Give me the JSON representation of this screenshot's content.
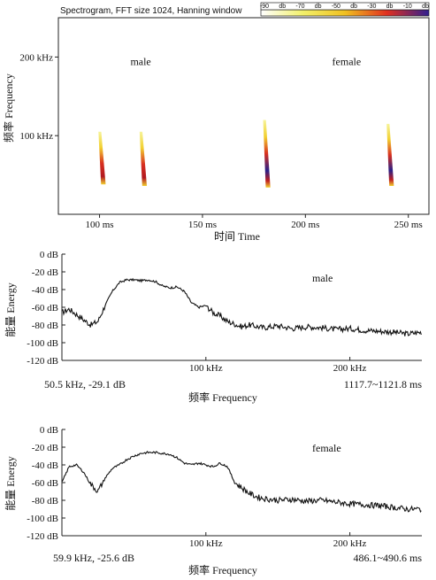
{
  "chart_data": [
    {
      "type": "heatmap",
      "title": "Spectrogram, FFT size 1024, Hanning window",
      "xlabel": "时间 Time",
      "ylabel": "频率 Frequency",
      "x_ticks": [
        "100 ms",
        "150 ms",
        "200 ms",
        "250 ms"
      ],
      "x_tick_values": [
        100,
        150,
        200,
        250
      ],
      "y_ticks": [
        "200 kHz",
        "100 kHz"
      ],
      "y_tick_values": [
        200,
        100
      ],
      "xlim": [
        80,
        260
      ],
      "ylim": [
        0,
        250
      ],
      "colorbar": {
        "labels": [
          "-90",
          "db",
          "-70",
          "db",
          "-50",
          "db",
          "-30",
          "db",
          "-10",
          "db"
        ],
        "colors": [
          "#ffffff",
          "#f2f06a",
          "#f0c020",
          "#e03020",
          "#302090"
        ]
      },
      "annotations": [
        {
          "text": "male",
          "x": 120,
          "y": 190
        },
        {
          "text": "female",
          "x": 220,
          "y": 190
        }
      ],
      "calls": [
        {
          "t": 101,
          "f_low": 38,
          "f_high": 105
        },
        {
          "t": 121,
          "f_low": 36,
          "f_high": 105
        },
        {
          "t": 181,
          "f_low": 34,
          "f_high": 120
        },
        {
          "t": 241,
          "f_low": 36,
          "f_high": 115
        }
      ]
    },
    {
      "type": "line",
      "title": "male",
      "xlabel": "频率 Frequency",
      "ylabel": "能量 Energy",
      "y_ticks": [
        "0 dB",
        "-20 dB",
        "-40 dB",
        "-60 dB",
        "-80 dB",
        "-100 dB",
        "-120 dB"
      ],
      "y_tick_values": [
        0,
        -20,
        -40,
        -60,
        -80,
        -100,
        -120
      ],
      "x_ticks": [
        "100 kHz",
        "200 kHz"
      ],
      "x_tick_values": [
        100,
        200
      ],
      "xlim": [
        0,
        250
      ],
      "ylim": [
        -120,
        0
      ],
      "peak_label": "50.5 kHz, -29.1 dB",
      "time_label": "1117.7~1121.8 ms",
      "series": [
        {
          "x": [
            0,
            5,
            10,
            15,
            20,
            25,
            30,
            35,
            40,
            45,
            50,
            55,
            60,
            65,
            70,
            75,
            80,
            85,
            90,
            95,
            100,
            105,
            110,
            115,
            120,
            125,
            130,
            140,
            150,
            160,
            170,
            180,
            190,
            200,
            210,
            220,
            230,
            240,
            250
          ],
          "values": [
            -66,
            -62,
            -68,
            -74,
            -80,
            -76,
            -58,
            -42,
            -32,
            -29,
            -29,
            -30,
            -29,
            -31,
            -36,
            -38,
            -37,
            -42,
            -55,
            -60,
            -58,
            -66,
            -70,
            -76,
            -79,
            -82,
            -80,
            -83,
            -81,
            -84,
            -82,
            -83,
            -85,
            -84,
            -86,
            -87,
            -88,
            -90,
            -88
          ]
        }
      ]
    },
    {
      "type": "line",
      "title": "female",
      "xlabel": "频率 Frequency",
      "ylabel": "能量 Energy",
      "y_ticks": [
        "0 dB",
        "-20 dB",
        "-40 dB",
        "-60 dB",
        "-80 dB",
        "-100 dB",
        "-120 dB"
      ],
      "y_tick_values": [
        0,
        -20,
        -40,
        -60,
        -80,
        -100,
        -120
      ],
      "x_ticks": [
        "100 kHz",
        "200 kHz"
      ],
      "x_tick_values": [
        100,
        200
      ],
      "xlim": [
        0,
        250
      ],
      "ylim": [
        -120,
        0
      ],
      "peak_label": "59.9 kHz, -25.6 dB",
      "time_label": "486.1~490.6 ms",
      "series": [
        {
          "x": [
            0,
            5,
            10,
            15,
            20,
            25,
            30,
            35,
            40,
            45,
            50,
            55,
            60,
            65,
            70,
            75,
            80,
            85,
            90,
            95,
            100,
            105,
            110,
            115,
            120,
            125,
            130,
            135,
            140,
            150,
            160,
            170,
            180,
            190,
            200,
            210,
            220,
            230,
            240,
            250
          ],
          "values": [
            -60,
            -42,
            -40,
            -48,
            -62,
            -70,
            -55,
            -44,
            -40,
            -34,
            -30,
            -27,
            -26,
            -26,
            -27,
            -28,
            -32,
            -38,
            -40,
            -38,
            -40,
            -42,
            -38,
            -42,
            -60,
            -66,
            -72,
            -76,
            -78,
            -80,
            -79,
            -81,
            -80,
            -82,
            -84,
            -85,
            -86,
            -88,
            -90,
            -90
          ]
        }
      ]
    }
  ]
}
